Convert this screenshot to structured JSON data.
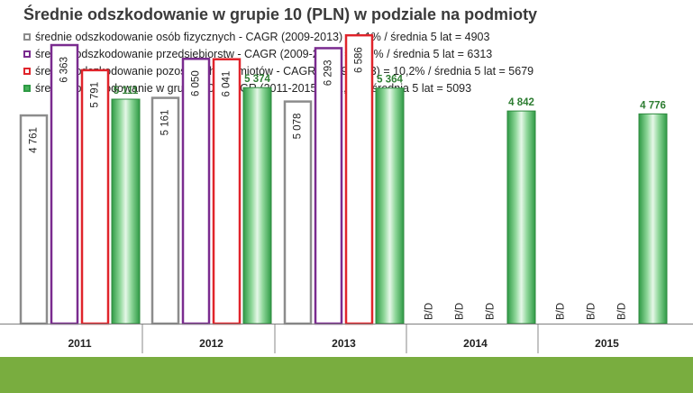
{
  "chart_data": {
    "type": "bar",
    "title": "Średnie odszkodowanie w grupie 10 (PLN) w podziale na podmioty",
    "categories": [
      "2011",
      "2012",
      "2013",
      "2014",
      "2015"
    ],
    "ylim": [
      0,
      7000
    ],
    "grid": false,
    "legend_position": "top-left",
    "missing_label": "B/D",
    "series": [
      {
        "name": "średnie odszkodowanie osób fizycznych - CAGR (2009-2013) = 1,1% / średnia 5 lat = 4903",
        "color": "#8c8c8c",
        "style": "outline",
        "values": [
          4761,
          5161,
          5078,
          null,
          null
        ],
        "labels": [
          "4 761",
          "5 161",
          "5 078",
          "B/D",
          "B/D"
        ]
      },
      {
        "name": "średnie odszkodowanie przedsiębiorstw - CAGR (2009-2013) = -1,8% / średnia 5 lat = 6313",
        "color": "#7a2b8f",
        "style": "outline",
        "values": [
          6363,
          6050,
          6293,
          null,
          null
        ],
        "labels": [
          "6 363",
          "6 050",
          "6 293",
          "B/D",
          "B/D"
        ]
      },
      {
        "name": "średnie odszkodowanie pozostałych podmiotów - CAGR (2009-2013) = 10,2% / średnia 5 lat = 5679",
        "color": "#e0242b",
        "style": "outline",
        "values": [
          5791,
          6041,
          6586,
          null,
          null
        ],
        "labels": [
          "5 791",
          "6 041",
          "6 586",
          "B/D",
          "B/D"
        ]
      },
      {
        "name": "średnie odszkodowanie w grupie 10 - CAGR (2011-2015) = -1,7% / średnia 5 lat = 5093",
        "color": "#2e9a44",
        "style": "filled",
        "values": [
          5111,
          5374,
          5364,
          4842,
          4776
        ],
        "labels": [
          "5 111",
          "5 374",
          "5 364",
          "4 842",
          "4 776"
        ]
      }
    ]
  }
}
